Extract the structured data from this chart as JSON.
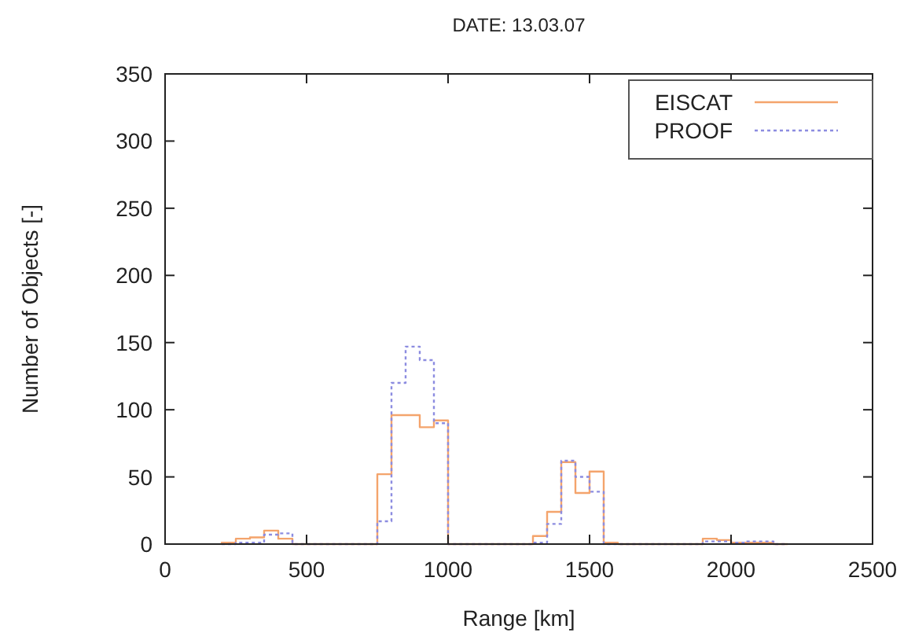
{
  "chart_data": {
    "type": "histogram",
    "title": "DATE: 13.03.07",
    "xlabel": "Range [km]",
    "ylabel": "Number of Objects [-]",
    "bins": [
      200,
      250,
      300,
      350,
      400,
      450,
      500,
      550,
      600,
      650,
      700,
      750,
      800,
      850,
      900,
      950,
      1000,
      1050,
      1100,
      1150,
      1200,
      1250,
      1300,
      1350,
      1400,
      1450,
      1500,
      1550,
      1600,
      1650,
      1700,
      1750,
      1800,
      1850,
      1900,
      1950,
      2000,
      2050,
      2100,
      2150,
      2200
    ],
    "series": [
      {
        "name": "EISCAT",
        "color": "#f4a46c",
        "line_style": "solid",
        "values": [
          1,
          4,
          5,
          10,
          4,
          0,
          0,
          0,
          0,
          0,
          0,
          52,
          96,
          96,
          87,
          92,
          0,
          0,
          0,
          0,
          0,
          0,
          6,
          24,
          61,
          38,
          54,
          1,
          0,
          0,
          0,
          0,
          0,
          0,
          4,
          3,
          1,
          1,
          1,
          0
        ]
      },
      {
        "name": "PROOF",
        "color": "#8c8ce0",
        "line_style": "dotted",
        "values": [
          0,
          1,
          1,
          7,
          8,
          0,
          0,
          0,
          0,
          0,
          0,
          17,
          120,
          147,
          137,
          90,
          0,
          0,
          0,
          0,
          0,
          0,
          1,
          15,
          62,
          50,
          39,
          0,
          0,
          0,
          0,
          0,
          0,
          0,
          2,
          2,
          1,
          2,
          2,
          0
        ]
      }
    ],
    "xlim": [
      0,
      2500
    ],
    "xticks": [
      0,
      500,
      1000,
      1500,
      2000,
      2500
    ],
    "ylim": [
      0,
      350
    ],
    "yticks": [
      0,
      50,
      100,
      150,
      200,
      250,
      300,
      350
    ],
    "grid": false,
    "legend": "top right"
  }
}
